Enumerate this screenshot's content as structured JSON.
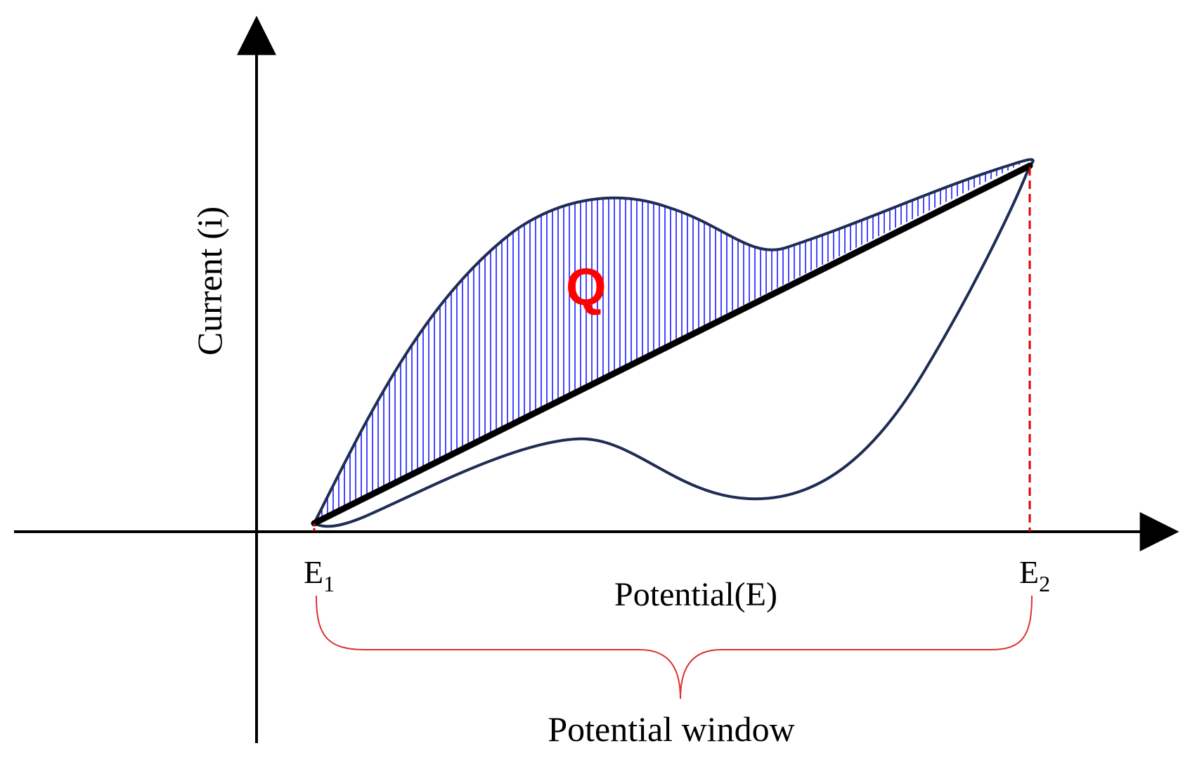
{
  "labels": {
    "y_axis": "Current (i)",
    "x_axis": "Potential(E)",
    "e1_base": "E",
    "e1_sub": "1",
    "e2_base": "E",
    "e2_sub": "2",
    "charge": "Q",
    "window": "Potential window"
  },
  "colors": {
    "axis": "#000000",
    "curve": "#1f2d55",
    "hatch": "#1a1aff",
    "baseline": "#000000",
    "marker": "#e00000",
    "brace": "#e03030",
    "charge_label": "#ff0000"
  }
}
